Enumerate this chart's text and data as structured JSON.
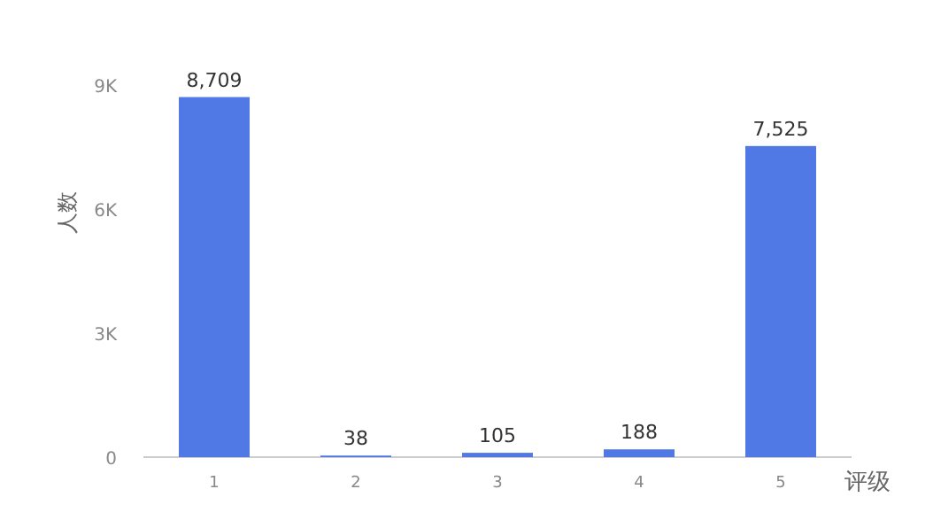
{
  "chart_data": {
    "type": "bar",
    "xlabel": "评级",
    "ylabel": "人数",
    "categories": [
      "1",
      "2",
      "3",
      "4",
      "5"
    ],
    "values": [
      8709,
      38,
      105,
      188,
      7525
    ],
    "value_labels": [
      "8,709",
      "38",
      "105",
      "188",
      "7,525"
    ],
    "color": "#5079e6",
    "ylim": [
      0,
      9000
    ],
    "yticks": [
      0,
      {
        "value": 3000,
        "label": "3K"
      },
      {
        "value": 6000,
        "label": "6K"
      },
      {
        "value": 9000,
        "label": "9K"
      }
    ]
  }
}
